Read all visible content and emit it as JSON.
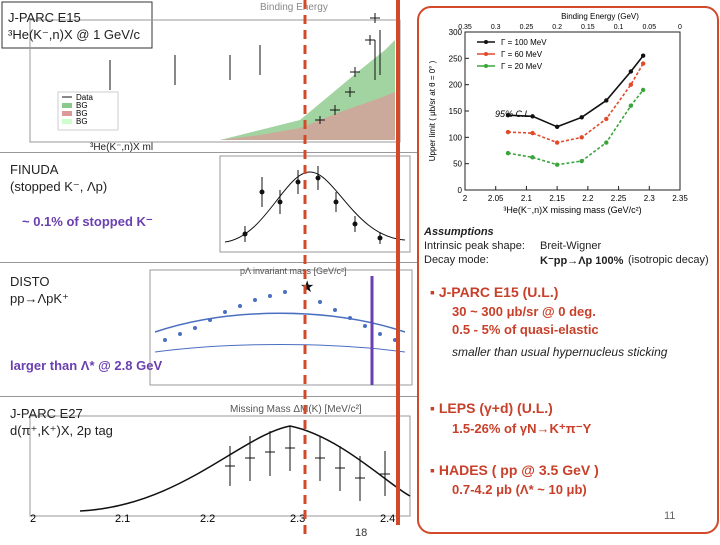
{
  "panels": {
    "e15": {
      "title": "J-PARC E15",
      "reaction": "³He(K⁻,n)X @ 1 GeV/c",
      "xaxis": "³He(K⁻,n)X ml",
      "top_axis": "Binding Energy",
      "legend": [
        "Data",
        "BG",
        "BG",
        "BG"
      ]
    },
    "finuda": {
      "title": "FINUDA",
      "reaction": "(stopped K⁻, Λp)",
      "note": "~ 0.1% of stopped K⁻"
    },
    "disto": {
      "title": "DISTO",
      "reaction": "pp→ΛpK⁺",
      "note": "larger than Λ* @ 2.8 GeV",
      "axis": "pΛ invariant mass [GeV/c²]"
    },
    "e27": {
      "title": "J-PARC E27",
      "reaction": "d(π⁺,K⁺)X, 2p tag",
      "axis": "Missing Mass  ΔM(K)  [MeV/c²]",
      "ticks": [
        "2",
        "2.1",
        "2.2",
        "2.3",
        "2.4"
      ],
      "page_num": "18"
    }
  },
  "chart_data": {
    "type": "line",
    "xlabel": "³He(K⁻,n)X missing mass (GeV/c²)",
    "ylabel": "Upper limit ( μb/sr at θ = 0° )",
    "top_label": "Binding Energy (GeV)",
    "x": [
      2.07,
      2.11,
      2.15,
      2.19,
      2.23,
      2.27,
      2.29
    ],
    "xlim": [
      2.0,
      2.35
    ],
    "ylim": [
      0,
      300
    ],
    "xticks": [
      "2",
      "2.05",
      "2.1",
      "2.15",
      "2.2",
      "2.25",
      "2.3",
      "2.35"
    ],
    "yticks": [
      "0",
      "50",
      "100",
      "150",
      "200",
      "250",
      "300"
    ],
    "top_ticks": [
      "0.35",
      "0.3",
      "0.25",
      "0.2",
      "0.15",
      "0.1",
      "0.05",
      "0"
    ],
    "annotation": "95% C.L.",
    "series": [
      {
        "name": "Γ = 100 MeV",
        "color": "#111111",
        "values": [
          142,
          140,
          120,
          138,
          170,
          225,
          255
        ]
      },
      {
        "name": "Γ = 60 MeV",
        "color": "#e04a2a",
        "values": [
          110,
          108,
          90,
          100,
          135,
          200,
          240
        ]
      },
      {
        "name": "Γ = 20 MeV",
        "color": "#3aa53a",
        "values": [
          70,
          62,
          48,
          55,
          90,
          160,
          190
        ]
      }
    ]
  },
  "assumptions": {
    "title": "Assumptions",
    "rows": [
      {
        "k": "Intrinsic peak shape:",
        "v": "Breit-Wigner"
      },
      {
        "k": "Decay mode:",
        "v": "K⁻pp→Λp 100%",
        "extra": "(isotropic decay)"
      }
    ]
  },
  "bullets": [
    {
      "head": "J-PARC E15 (U.L.)",
      "lines": [
        "30 ~ 300 μb/sr @ 0 deg.",
        "0.5 - 5%  of quasi-elastic"
      ],
      "note": "smaller than usual hypernucleus sticking"
    },
    {
      "head": "LEPS (γ+d) (U.L.)",
      "lines": [
        "1.5-26% of γN→K⁺π⁻Y"
      ]
    },
    {
      "head": "HADES ( pp @ 3.5 GeV )",
      "lines": [
        "0.7-4.2 μb (Λ* ~ 10 μb)"
      ]
    }
  ],
  "slide_number": "11",
  "colors": {
    "accent": "#d24a2a",
    "purple": "#6a3fb0",
    "red_text": "#c8402a"
  }
}
